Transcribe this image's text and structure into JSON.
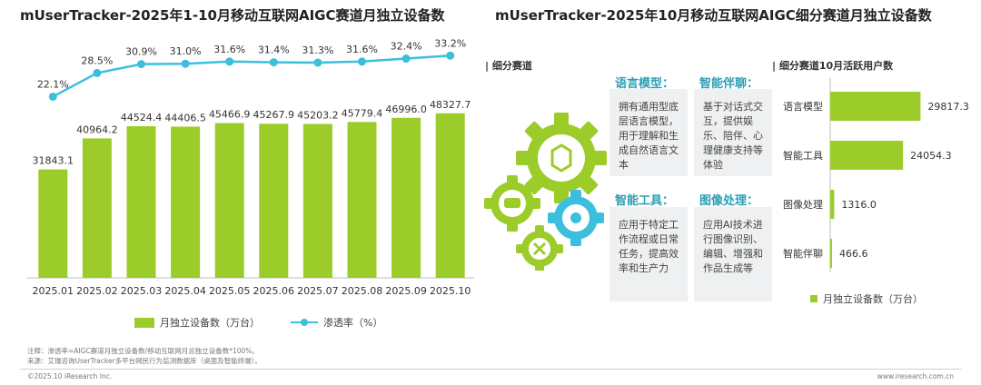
{
  "left_chart": {
    "title": "mUserTracker-2025年1-10月移动互联网AIGC赛道月独立设备数",
    "chart_data": {
      "type": "bar",
      "categories": [
        "2025.01",
        "2025.02",
        "2025.03",
        "2025.04",
        "2025.05",
        "2025.06",
        "2025.07",
        "2025.08",
        "2025.09",
        "2025.10"
      ],
      "series": [
        {
          "name": "月独立设备数（万台）",
          "type": "bar",
          "values": [
            31843.1,
            40964.2,
            44524.4,
            44406.5,
            45466.9,
            45267.9,
            45203.2,
            45779.4,
            46996.0,
            48327.7
          ],
          "labels": [
            "31843.1",
            "40964.2",
            "44524.4",
            "44406.5",
            "45466.9",
            "45267.9",
            "45203.2",
            "45779.4",
            "46996.0",
            "48327.7"
          ]
        },
        {
          "name": "渗透率（%）",
          "type": "line",
          "values": [
            22.1,
            28.5,
            30.9,
            31.0,
            31.6,
            31.4,
            31.3,
            31.6,
            32.4,
            33.2
          ],
          "labels": [
            "22.1%",
            "28.5%",
            "30.9%",
            "31.0%",
            "31.6%",
            "31.4%",
            "31.3%",
            "31.6%",
            "32.4%",
            "33.2%"
          ]
        }
      ],
      "colors": {
        "bar": "#9ccc2a",
        "line": "#3bbfdd"
      },
      "legend": "bottom"
    }
  },
  "right_panel": {
    "title": "mUserTracker-2025年10月移动互联网AIGC细分赛道月独立设备数",
    "segments_header": "| 细分赛道",
    "cards": [
      {
        "title": "语言模型：",
        "text": "拥有通用型底层语言模型，用于理解和生成自然语言文本"
      },
      {
        "title": "智能伴聊：",
        "text": "基于对话式交互，提供娱乐、陪伴、心理健康支持等体验"
      },
      {
        "title": "智能工具：",
        "text": "应用于特定工作流程或日常任务，提高效率和生产力"
      },
      {
        "title": "图像处理：",
        "text": "应用AI技术进行图像识别、编辑、增强和作品生成等"
      }
    ],
    "chart_header": "| 细分赛道10月活跃用户数",
    "chart_data": {
      "type": "bar",
      "orientation": "horizontal",
      "categories": [
        "语言模型",
        "智能工具",
        "图像处理",
        "智能伴聊"
      ],
      "values": [
        29817.3,
        24054.3,
        1316.0,
        466.6
      ],
      "labels": [
        "29817.3",
        "24054.3",
        "1316.0",
        "466.6"
      ],
      "series_name": "月独立设备数（万台）",
      "color": "#9ccc2a",
      "legend": "bottom"
    },
    "gear_colors": [
      "#9ccc2a",
      "#3bbfdd"
    ]
  },
  "footer": {
    "note": "注释：渗透率=AIGC赛道月独立设备数/移动互联网月总独立设备数*100%。",
    "source": "来源：艾瑞咨询UserTracker多平台网民行为监测数据库（桌面及智能终端）。",
    "copyright": "©2025.10 iResearch Inc.",
    "website": "www.iresearch.com.cn"
  }
}
